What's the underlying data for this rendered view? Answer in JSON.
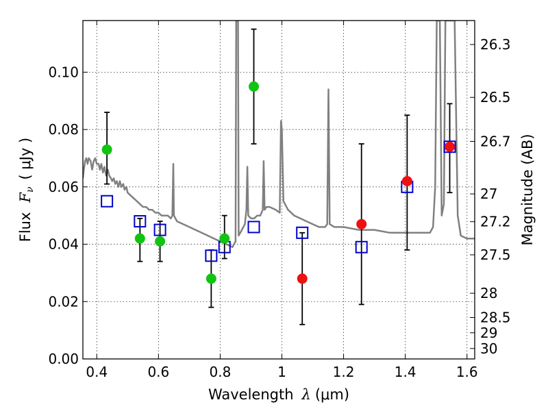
{
  "chart_data": {
    "type": "scatter",
    "title": "",
    "xlabel_prefix": "Wavelength",
    "xlabel_symbol": "λ",
    "xlabel_units": "(μm)",
    "ylabel_prefix": "Flux",
    "ylabel_symbol": "F",
    "ylabel_subscript": "ν",
    "ylabel_units": "( μJy )",
    "ylabel_right": "Magnitude (AB)",
    "xlim": [
      0.355,
      1.625
    ],
    "ylim": [
      0.0,
      0.118
    ],
    "grid": true,
    "x_ticks": [
      {
        "value": 0.4,
        "label": "0.4"
      },
      {
        "value": 0.6,
        "label": "0.6"
      },
      {
        "value": 0.8,
        "label": "0.8"
      },
      {
        "value": 1.0,
        "label": "1"
      },
      {
        "value": 1.2,
        "label": "1.2"
      },
      {
        "value": 1.4,
        "label": "1.4"
      },
      {
        "value": 1.6,
        "label": "1.6"
      }
    ],
    "y_ticks": [
      {
        "value": 0.0,
        "label": "0.00"
      },
      {
        "value": 0.02,
        "label": "0.02"
      },
      {
        "value": 0.04,
        "label": "0.04"
      },
      {
        "value": 0.06,
        "label": "0.06"
      },
      {
        "value": 0.08,
        "label": "0.08"
      },
      {
        "value": 0.1,
        "label": "0.10"
      }
    ],
    "magnitude_ticks": [
      {
        "mag": 26.3,
        "label": "26.3"
      },
      {
        "mag": 26.5,
        "label": "26.5"
      },
      {
        "mag": 26.7,
        "label": "26.7"
      },
      {
        "mag": 27.0,
        "label": "27"
      },
      {
        "mag": 27.2,
        "label": "27.2"
      },
      {
        "mag": 27.5,
        "label": "27.5"
      },
      {
        "mag": 28.0,
        "label": "28"
      },
      {
        "mag": 28.5,
        "label": "28.5"
      },
      {
        "mag": 29.0,
        "label": "29"
      },
      {
        "mag": 30.0,
        "label": "30"
      }
    ],
    "series": [
      {
        "name": "model-spectrum",
        "kind": "line",
        "color": "#808080",
        "points": [
          [
            0.355,
            0.063
          ],
          [
            0.358,
            0.066
          ],
          [
            0.362,
            0.069
          ],
          [
            0.366,
            0.07
          ],
          [
            0.37,
            0.068
          ],
          [
            0.374,
            0.07
          ],
          [
            0.38,
            0.069
          ],
          [
            0.385,
            0.066
          ],
          [
            0.39,
            0.069
          ],
          [
            0.395,
            0.07
          ],
          [
            0.4,
            0.068
          ],
          [
            0.406,
            0.068
          ],
          [
            0.41,
            0.066
          ],
          [
            0.415,
            0.068
          ],
          [
            0.42,
            0.065
          ],
          [
            0.425,
            0.067
          ],
          [
            0.43,
            0.064
          ],
          [
            0.436,
            0.066
          ],
          [
            0.44,
            0.064
          ],
          [
            0.446,
            0.063
          ],
          [
            0.45,
            0.062
          ],
          [
            0.455,
            0.063
          ],
          [
            0.46,
            0.061
          ],
          [
            0.465,
            0.062
          ],
          [
            0.47,
            0.06
          ],
          [
            0.475,
            0.062
          ],
          [
            0.48,
            0.06
          ],
          [
            0.486,
            0.061
          ],
          [
            0.49,
            0.059
          ],
          [
            0.496,
            0.06
          ],
          [
            0.5,
            0.058
          ],
          [
            0.51,
            0.057
          ],
          [
            0.52,
            0.056
          ],
          [
            0.53,
            0.055
          ],
          [
            0.54,
            0.054
          ],
          [
            0.55,
            0.053
          ],
          [
            0.56,
            0.053
          ],
          [
            0.57,
            0.052
          ],
          [
            0.58,
            0.052
          ],
          [
            0.59,
            0.051
          ],
          [
            0.6,
            0.051
          ],
          [
            0.61,
            0.05
          ],
          [
            0.62,
            0.05
          ],
          [
            0.63,
            0.05
          ],
          [
            0.64,
            0.049
          ],
          [
            0.645,
            0.05
          ],
          [
            0.648,
            0.068
          ],
          [
            0.65,
            0.05
          ],
          [
            0.66,
            0.048
          ],
          [
            0.68,
            0.047
          ],
          [
            0.7,
            0.046
          ],
          [
            0.72,
            0.045
          ],
          [
            0.74,
            0.044
          ],
          [
            0.76,
            0.043
          ],
          [
            0.78,
            0.042
          ],
          [
            0.8,
            0.041
          ],
          [
            0.82,
            0.04
          ],
          [
            0.84,
            0.039
          ],
          [
            0.85,
            0.041
          ],
          [
            0.852,
            0.118
          ],
          [
            0.858,
            0.118
          ],
          [
            0.86,
            0.043
          ],
          [
            0.87,
            0.045
          ],
          [
            0.88,
            0.047
          ],
          [
            0.885,
            0.052
          ],
          [
            0.888,
            0.067
          ],
          [
            0.891,
            0.05
          ],
          [
            0.9,
            0.049
          ],
          [
            0.91,
            0.049
          ],
          [
            0.92,
            0.05
          ],
          [
            0.93,
            0.05
          ],
          [
            0.938,
            0.052
          ],
          [
            0.941,
            0.069
          ],
          [
            0.944,
            0.052
          ],
          [
            0.95,
            0.053
          ],
          [
            0.96,
            0.053
          ],
          [
            0.98,
            0.052
          ],
          [
            0.993,
            0.051
          ],
          [
            0.997,
            0.083
          ],
          [
            1.0,
            0.08
          ],
          [
            1.005,
            0.055
          ],
          [
            1.02,
            0.052
          ],
          [
            1.04,
            0.05
          ],
          [
            1.06,
            0.049
          ],
          [
            1.08,
            0.048
          ],
          [
            1.1,
            0.047
          ],
          [
            1.12,
            0.046
          ],
          [
            1.13,
            0.046
          ],
          [
            1.14,
            0.046
          ],
          [
            1.147,
            0.047
          ],
          [
            1.151,
            0.094
          ],
          [
            1.155,
            0.047
          ],
          [
            1.17,
            0.046
          ],
          [
            1.2,
            0.046
          ],
          [
            1.25,
            0.045
          ],
          [
            1.3,
            0.045
          ],
          [
            1.35,
            0.044
          ],
          [
            1.4,
            0.044
          ],
          [
            1.45,
            0.044
          ],
          [
            1.48,
            0.044
          ],
          [
            1.49,
            0.046
          ],
          [
            1.497,
            0.06
          ],
          [
            1.502,
            0.118
          ],
          [
            1.512,
            0.118
          ],
          [
            1.518,
            0.05
          ],
          [
            1.525,
            0.054
          ],
          [
            1.53,
            0.118
          ],
          [
            1.56,
            0.118
          ],
          [
            1.57,
            0.05
          ],
          [
            1.58,
            0.043
          ],
          [
            1.6,
            0.042
          ],
          [
            1.625,
            0.042
          ]
        ]
      },
      {
        "name": "green-points",
        "kind": "marker-circle",
        "color": "#12c412",
        "points": [
          {
            "x": 0.433,
            "y": 0.073,
            "ylo": 0.061,
            "yhi": 0.086
          },
          {
            "x": 0.54,
            "y": 0.042,
            "ylo": 0.034,
            "yhi": 0.049
          },
          {
            "x": 0.605,
            "y": 0.041,
            "ylo": 0.034,
            "yhi": 0.048
          },
          {
            "x": 0.771,
            "y": 0.028,
            "ylo": 0.018,
            "yhi": 0.038
          },
          {
            "x": 0.814,
            "y": 0.042,
            "ylo": 0.035,
            "yhi": 0.05
          },
          {
            "x": 0.909,
            "y": 0.095,
            "ylo": 0.075,
            "yhi": 0.115
          }
        ]
      },
      {
        "name": "red-points",
        "kind": "marker-circle",
        "color": "#ee1111",
        "points": [
          {
            "x": 1.066,
            "y": 0.028,
            "ylo": 0.012,
            "yhi": 0.044
          },
          {
            "x": 1.258,
            "y": 0.047,
            "ylo": 0.019,
            "yhi": 0.075
          },
          {
            "x": 1.406,
            "y": 0.062,
            "ylo": 0.038,
            "yhi": 0.085
          },
          {
            "x": 1.544,
            "y": 0.074,
            "ylo": 0.058,
            "yhi": 0.089
          }
        ]
      },
      {
        "name": "model-bandpass-squares",
        "kind": "marker-square",
        "color": "#0000cc",
        "points": [
          {
            "x": 0.433,
            "y": 0.055
          },
          {
            "x": 0.54,
            "y": 0.048
          },
          {
            "x": 0.605,
            "y": 0.045
          },
          {
            "x": 0.771,
            "y": 0.036
          },
          {
            "x": 0.814,
            "y": 0.039
          },
          {
            "x": 0.909,
            "y": 0.046
          },
          {
            "x": 1.066,
            "y": 0.044
          },
          {
            "x": 1.258,
            "y": 0.039
          },
          {
            "x": 1.406,
            "y": 0.06
          },
          {
            "x": 1.544,
            "y": 0.074
          }
        ]
      }
    ]
  }
}
